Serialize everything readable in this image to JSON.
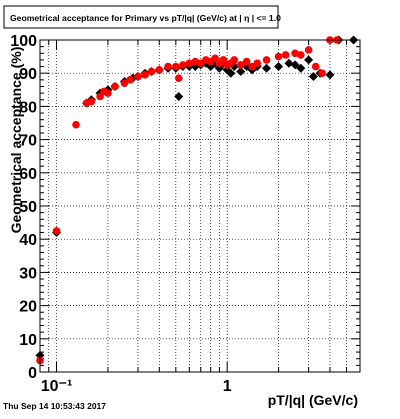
{
  "title": "Geometrical acceptance for Primary vs pT/|q| (GeV/c) at | η | <= 1.0",
  "timestamp": "Thu Sep 14 10:53:43 2017",
  "chart_data": {
    "type": "scatter",
    "xlabel": "pT/|q| (GeV/c)",
    "ylabel": "Geometrical acceptance (%)",
    "xscale": "log",
    "xlim": [
      0.08,
      6.0
    ],
    "ylim": [
      0,
      100
    ],
    "yticks": [
      0,
      10,
      20,
      30,
      40,
      50,
      60,
      70,
      80,
      90,
      100
    ],
    "ytick_labels": [
      "0",
      "10",
      "20",
      "30",
      "40",
      "50",
      "60",
      "70",
      "80",
      "90",
      "100"
    ],
    "xticks": [
      0.1,
      1
    ],
    "xtick_labels": [
      "10⁻¹",
      "1"
    ],
    "grid": true,
    "series": [
      {
        "color": "#000000",
        "marker": "diamond",
        "points": [
          [
            0.08,
            5.0
          ],
          [
            0.1,
            42.0
          ],
          [
            0.15,
            81.0
          ],
          [
            0.16,
            82.0
          ],
          [
            0.18,
            84.0
          ],
          [
            0.2,
            85.0
          ],
          [
            0.22,
            86.0
          ],
          [
            0.25,
            87.5
          ],
          [
            0.28,
            88.5
          ],
          [
            0.3,
            89.0
          ],
          [
            0.33,
            90.0
          ],
          [
            0.36,
            90.5
          ],
          [
            0.4,
            91.0
          ],
          [
            0.45,
            91.5
          ],
          [
            0.5,
            91.5
          ],
          [
            0.52,
            83.0
          ],
          [
            0.55,
            92.0
          ],
          [
            0.6,
            92.0
          ],
          [
            0.65,
            92.0
          ],
          [
            0.7,
            92.5
          ],
          [
            0.75,
            93.0
          ],
          [
            0.8,
            92.0
          ],
          [
            0.85,
            93.0
          ],
          [
            0.9,
            91.5
          ],
          [
            0.95,
            93.0
          ],
          [
            1.0,
            91.0
          ],
          [
            1.05,
            90.0
          ],
          [
            1.1,
            92.0
          ],
          [
            1.2,
            90.5
          ],
          [
            1.3,
            92.0
          ],
          [
            1.4,
            91.0
          ],
          [
            1.5,
            92.0
          ],
          [
            1.7,
            91.5
          ],
          [
            2.0,
            92.0
          ],
          [
            2.3,
            93.0
          ],
          [
            2.5,
            92.5
          ],
          [
            2.7,
            91.5
          ],
          [
            3.0,
            94.0
          ],
          [
            3.2,
            89.0
          ],
          [
            3.5,
            90.0
          ],
          [
            4.0,
            89.5
          ],
          [
            4.5,
            100.0
          ],
          [
            5.5,
            100.0
          ]
        ]
      },
      {
        "color": "#ff0000",
        "marker": "circle",
        "points": [
          [
            0.08,
            3.5
          ],
          [
            0.1,
            42.5
          ],
          [
            0.13,
            74.5
          ],
          [
            0.15,
            81.0
          ],
          [
            0.16,
            81.5
          ],
          [
            0.18,
            83.0
          ],
          [
            0.19,
            84.5
          ],
          [
            0.2,
            84.0
          ],
          [
            0.22,
            86.0
          ],
          [
            0.25,
            87.0
          ],
          [
            0.27,
            88.0
          ],
          [
            0.3,
            89.0
          ],
          [
            0.33,
            89.5
          ],
          [
            0.36,
            90.5
          ],
          [
            0.4,
            91.0
          ],
          [
            0.45,
            92.0
          ],
          [
            0.5,
            92.0
          ],
          [
            0.52,
            88.5
          ],
          [
            0.55,
            92.5
          ],
          [
            0.6,
            93.0
          ],
          [
            0.65,
            93.5
          ],
          [
            0.7,
            93.0
          ],
          [
            0.75,
            94.0
          ],
          [
            0.8,
            93.5
          ],
          [
            0.85,
            94.5
          ],
          [
            0.9,
            93.0
          ],
          [
            0.95,
            94.0
          ],
          [
            1.0,
            92.5
          ],
          [
            1.05,
            93.0
          ],
          [
            1.1,
            94.0
          ],
          [
            1.2,
            92.5
          ],
          [
            1.3,
            93.5
          ],
          [
            1.4,
            92.0
          ],
          [
            1.5,
            93.0
          ],
          [
            1.7,
            94.0
          ],
          [
            2.0,
            95.0
          ],
          [
            2.2,
            95.5
          ],
          [
            2.5,
            96.0
          ],
          [
            2.7,
            95.5
          ],
          [
            3.0,
            97.0
          ],
          [
            3.3,
            92.0
          ],
          [
            3.6,
            90.0
          ],
          [
            4.0,
            100.0
          ],
          [
            4.4,
            100.0
          ]
        ]
      }
    ]
  }
}
